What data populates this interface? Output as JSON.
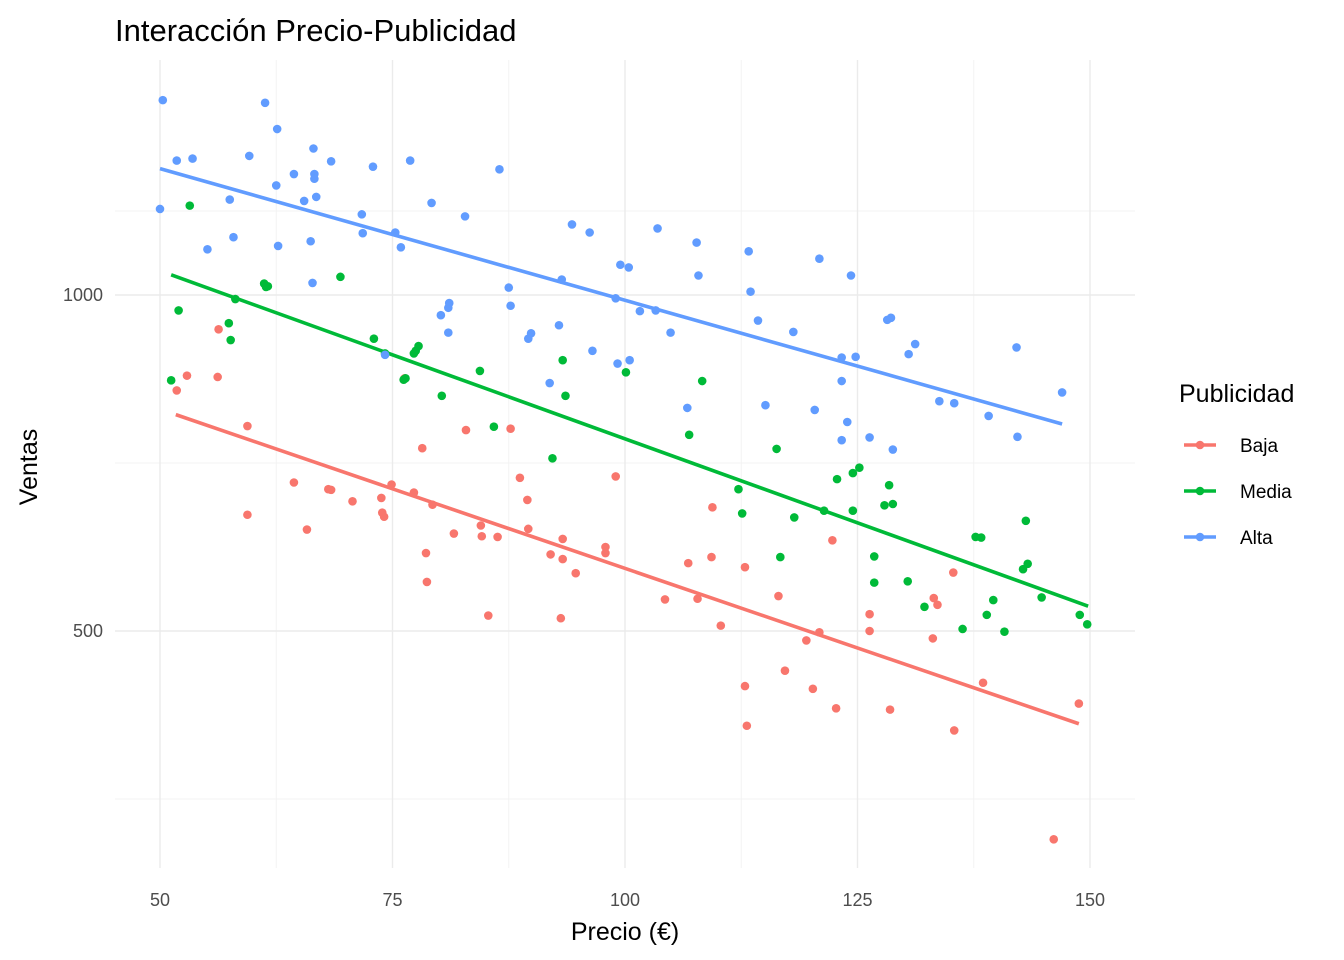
{
  "chart_data": {
    "type": "scatter",
    "title": "Interacción Precio-Publicidad",
    "xlabel": "Precio (€)",
    "ylabel": "Ventas",
    "xlim": [
      48,
      153
    ],
    "ylim": [
      145,
      1270
    ],
    "x_ticks": [
      50,
      75,
      100,
      125,
      150
    ],
    "x_tick_labels": [
      "50",
      "75",
      "100",
      "125",
      "150"
    ],
    "y_ticks": [
      500,
      1000
    ],
    "y_tick_labels": [
      "500",
      "1000"
    ],
    "grid": true,
    "legend": {
      "title": "Publicidad",
      "position": "right"
    },
    "series": [
      {
        "name": "Baja",
        "color": "#F8766D",
        "trend": {
          "x": [
            51.7,
            148.8
          ],
          "y": [
            822,
            362
          ]
        },
        "points": [
          [
            51.8,
            858
          ],
          [
            52.9,
            880
          ],
          [
            56.2,
            878
          ],
          [
            56.3,
            949
          ],
          [
            59.4,
            805
          ],
          [
            59.4,
            673
          ],
          [
            64.4,
            721
          ],
          [
            65.8,
            651
          ],
          [
            68.1,
            711
          ],
          [
            68.4,
            710
          ],
          [
            70.7,
            693
          ],
          [
            73.8,
            698
          ],
          [
            73.9,
            676
          ],
          [
            74.1,
            670
          ],
          [
            74.9,
            718
          ],
          [
            76.3,
            876
          ],
          [
            77.3,
            706
          ],
          [
            78.2,
            772
          ],
          [
            78.6,
            616
          ],
          [
            78.7,
            573
          ],
          [
            79.3,
            688
          ],
          [
            81.6,
            645
          ],
          [
            82.9,
            799
          ],
          [
            84.5,
            657
          ],
          [
            84.6,
            641
          ],
          [
            85.3,
            523
          ],
          [
            86.3,
            640
          ],
          [
            87.7,
            801
          ],
          [
            88.7,
            728
          ],
          [
            89.5,
            695
          ],
          [
            89.6,
            652
          ],
          [
            92.0,
            614
          ],
          [
            93.1,
            519
          ],
          [
            93.3,
            637
          ],
          [
            93.3,
            607
          ],
          [
            94.7,
            586
          ],
          [
            97.9,
            625
          ],
          [
            97.9,
            616
          ],
          [
            99.0,
            730
          ],
          [
            104.3,
            547
          ],
          [
            106.8,
            601
          ],
          [
            107.8,
            548
          ],
          [
            109.3,
            610
          ],
          [
            109.4,
            684
          ],
          [
            110.3,
            508
          ],
          [
            112.9,
            418
          ],
          [
            112.9,
            595
          ],
          [
            113.1,
            359
          ],
          [
            116.5,
            552
          ],
          [
            117.2,
            441
          ],
          [
            119.5,
            486
          ],
          [
            120.2,
            414
          ],
          [
            120.9,
            498
          ],
          [
            122.3,
            635
          ],
          [
            122.7,
            385
          ],
          [
            126.3,
            525
          ],
          [
            126.3,
            500
          ],
          [
            128.5,
            383
          ],
          [
            133.1,
            489
          ],
          [
            133.2,
            549
          ],
          [
            133.6,
            539
          ],
          [
            135.3,
            587
          ],
          [
            135.4,
            352
          ],
          [
            138.5,
            423
          ],
          [
            146.1,
            190
          ],
          [
            148.8,
            392
          ]
        ]
      },
      {
        "name": "Media",
        "color": "#00BA38",
        "trend": {
          "x": [
            51.2,
            149.8
          ],
          "y": [
            1030,
            537
          ]
        },
        "points": [
          [
            51.2,
            873
          ],
          [
            52.0,
            977
          ],
          [
            53.2,
            1133
          ],
          [
            57.4,
            958
          ],
          [
            57.6,
            933
          ],
          [
            58.1,
            994
          ],
          [
            61.2,
            1017
          ],
          [
            61.4,
            1012
          ],
          [
            61.6,
            1013
          ],
          [
            69.4,
            1027
          ],
          [
            73.0,
            935
          ],
          [
            74.2,
            913
          ],
          [
            76.2,
            874
          ],
          [
            76.4,
            876
          ],
          [
            77.3,
            913
          ],
          [
            77.5,
            917
          ],
          [
            77.8,
            924
          ],
          [
            80.3,
            850
          ],
          [
            84.4,
            887
          ],
          [
            85.9,
            804
          ],
          [
            92.2,
            757
          ],
          [
            93.3,
            903
          ],
          [
            93.6,
            850
          ],
          [
            100.1,
            885
          ],
          [
            106.9,
            792
          ],
          [
            108.3,
            872
          ],
          [
            112.2,
            711
          ],
          [
            112.6,
            675
          ],
          [
            116.3,
            771
          ],
          [
            116.7,
            610
          ],
          [
            118.2,
            669
          ],
          [
            121.4,
            679
          ],
          [
            122.8,
            726
          ],
          [
            124.5,
            735
          ],
          [
            124.5,
            679
          ],
          [
            125.2,
            743
          ],
          [
            126.8,
            572
          ],
          [
            126.8,
            611
          ],
          [
            127.9,
            687
          ],
          [
            128.4,
            717
          ],
          [
            128.8,
            689
          ],
          [
            130.4,
            574
          ],
          [
            132.2,
            536
          ],
          [
            136.3,
            503
          ],
          [
            137.7,
            640
          ],
          [
            138.3,
            639
          ],
          [
            138.9,
            524
          ],
          [
            139.6,
            546
          ],
          [
            140.8,
            499
          ],
          [
            142.8,
            592
          ],
          [
            143.1,
            664
          ],
          [
            143.3,
            600
          ],
          [
            144.8,
            550
          ],
          [
            148.9,
            524
          ],
          [
            149.7,
            510
          ]
        ]
      },
      {
        "name": "Alta",
        "color": "#619CFF",
        "trend": {
          "x": [
            50.0,
            147.0
          ],
          "y": [
            1188,
            808
          ]
        },
        "points": [
          [
            50.0,
            1128
          ],
          [
            50.3,
            1290
          ],
          [
            51.8,
            1200
          ],
          [
            53.5,
            1203
          ],
          [
            55.1,
            1068
          ],
          [
            57.5,
            1142
          ],
          [
            57.9,
            1086
          ],
          [
            59.6,
            1207
          ],
          [
            61.3,
            1286
          ],
          [
            62.6,
            1247
          ],
          [
            62.7,
            1073
          ],
          [
            62.5,
            1163
          ],
          [
            64.4,
            1180
          ],
          [
            65.5,
            1140
          ],
          [
            66.2,
            1080
          ],
          [
            66.4,
            1018
          ],
          [
            66.5,
            1218
          ],
          [
            66.6,
            1180
          ],
          [
            66.6,
            1173
          ],
          [
            66.8,
            1146
          ],
          [
            68.4,
            1199
          ],
          [
            71.7,
            1120
          ],
          [
            71.8,
            1092
          ],
          [
            72.9,
            1191
          ],
          [
            74.2,
            911
          ],
          [
            75.3,
            1093
          ],
          [
            75.9,
            1071
          ],
          [
            76.9,
            1200
          ],
          [
            79.2,
            1137
          ],
          [
            80.2,
            970
          ],
          [
            81.0,
            944
          ],
          [
            81.0,
            981
          ],
          [
            81.1,
            988
          ],
          [
            82.8,
            1117
          ],
          [
            86.5,
            1187
          ],
          [
            87.5,
            1011
          ],
          [
            87.7,
            984
          ],
          [
            89.6,
            935
          ],
          [
            89.9,
            943
          ],
          [
            91.9,
            869
          ],
          [
            92.9,
            955
          ],
          [
            93.2,
            1023
          ],
          [
            94.3,
            1105
          ],
          [
            96.2,
            1093
          ],
          [
            96.5,
            917
          ],
          [
            99.0,
            995
          ],
          [
            99.2,
            898
          ],
          [
            99.5,
            1045
          ],
          [
            100.4,
            1041
          ],
          [
            100.5,
            903
          ],
          [
            101.6,
            976
          ],
          [
            103.3,
            977
          ],
          [
            103.5,
            1099
          ],
          [
            104.9,
            944
          ],
          [
            106.7,
            832
          ],
          [
            107.7,
            1078
          ],
          [
            107.9,
            1029
          ],
          [
            113.3,
            1065
          ],
          [
            113.5,
            1005
          ],
          [
            114.3,
            962
          ],
          [
            115.1,
            836
          ],
          [
            118.1,
            945
          ],
          [
            120.4,
            829
          ],
          [
            120.9,
            1054
          ],
          [
            123.3,
            784
          ],
          [
            123.3,
            907
          ],
          [
            123.3,
            872
          ],
          [
            123.9,
            811
          ],
          [
            124.3,
            1029
          ],
          [
            124.8,
            908
          ],
          [
            126.3,
            788
          ],
          [
            128.2,
            963
          ],
          [
            128.6,
            966
          ],
          [
            128.8,
            770
          ],
          [
            130.5,
            912
          ],
          [
            131.2,
            927
          ],
          [
            133.8,
            842
          ],
          [
            135.4,
            839
          ],
          [
            139.1,
            820
          ],
          [
            142.1,
            922
          ],
          [
            142.2,
            789
          ],
          [
            147.0,
            855
          ]
        ]
      }
    ]
  }
}
